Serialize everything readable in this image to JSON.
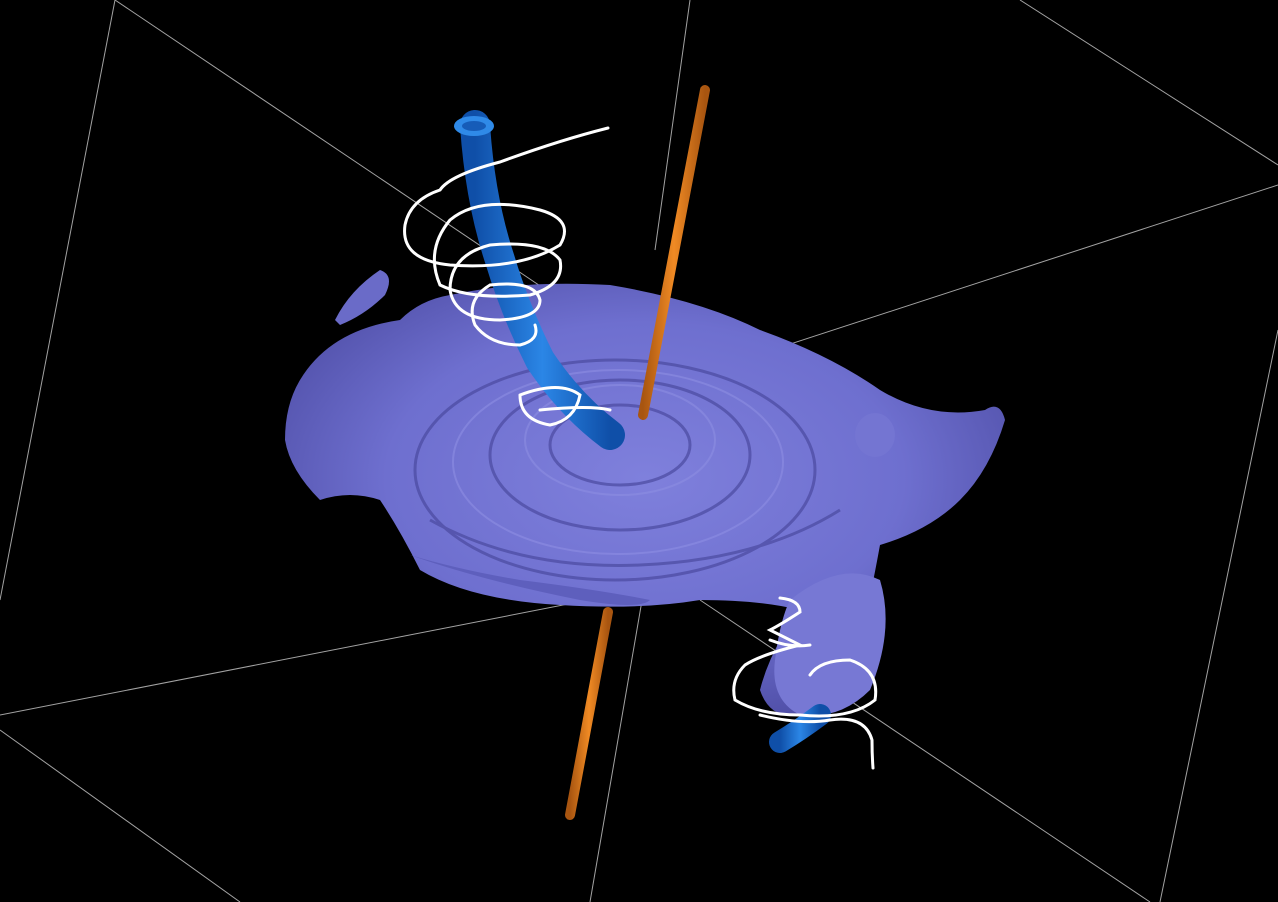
{
  "colors": {
    "background": "#000000",
    "bounding_box": "#bfbfbf",
    "vortex_surface": "#6e6fcf",
    "vortex_surface_shadow": "#4b4aa0",
    "vortex_tube": "#1f6fd0",
    "axis_rod": "#d9791a",
    "streamline": "#ffffff"
  }
}
